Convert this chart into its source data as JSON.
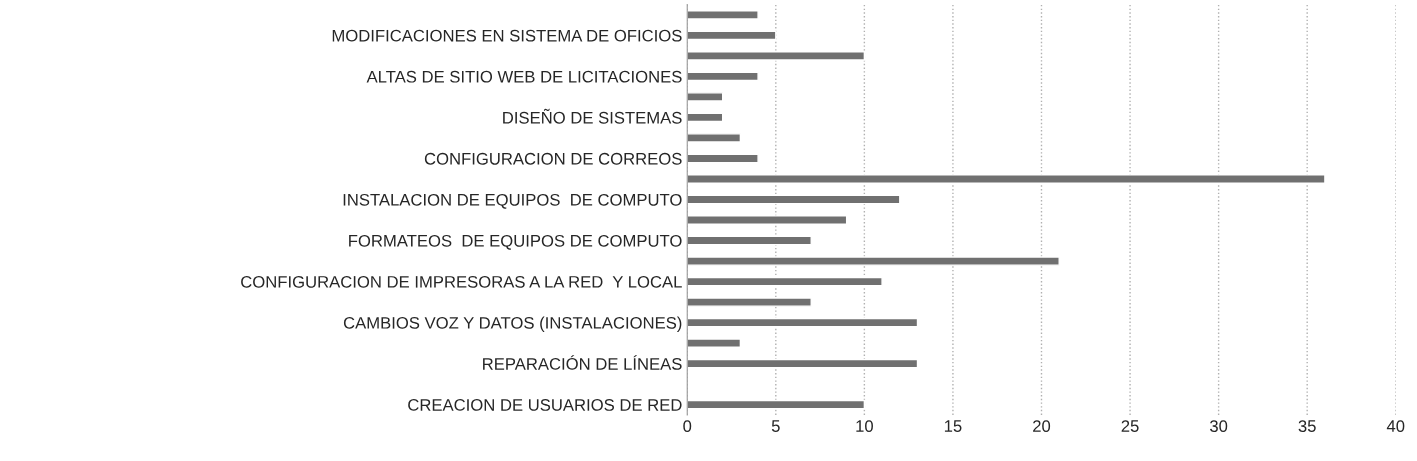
{
  "chart_data": {
    "type": "bar",
    "orientation": "horizontal",
    "categories": [
      null,
      "MODIFICACIONES EN SISTEMA DE OFICIOS",
      null,
      "ALTAS DE SITIO WEB DE LICITACIONES",
      null,
      "DISEÑO DE SISTEMAS",
      null,
      "CONFIGURACION DE CORREOS",
      null,
      "INSTALACION DE EQUIPOS  DE COMPUTO",
      null,
      "FORMATEOS  DE EQUIPOS DE COMPUTO",
      null,
      "CONFIGURACION DE IMPRESORAS A LA RED  Y LOCAL",
      null,
      "CAMBIOS VOZ Y DATOS (INSTALACIONES)",
      null,
      "REPARACIÓN DE LÍNEAS",
      null,
      "CREACION DE USUARIOS DE RED"
    ],
    "values": [
      4,
      5,
      10,
      4,
      2,
      2,
      3,
      4,
      36,
      12,
      9,
      7,
      21,
      11,
      7,
      13,
      3,
      13,
      null,
      10
    ],
    "color": "#707070",
    "xlim": [
      0,
      40
    ],
    "xticks": [
      0,
      5,
      10,
      15,
      20,
      25,
      30,
      35,
      40
    ],
    "grid": "x",
    "legend": false
  }
}
